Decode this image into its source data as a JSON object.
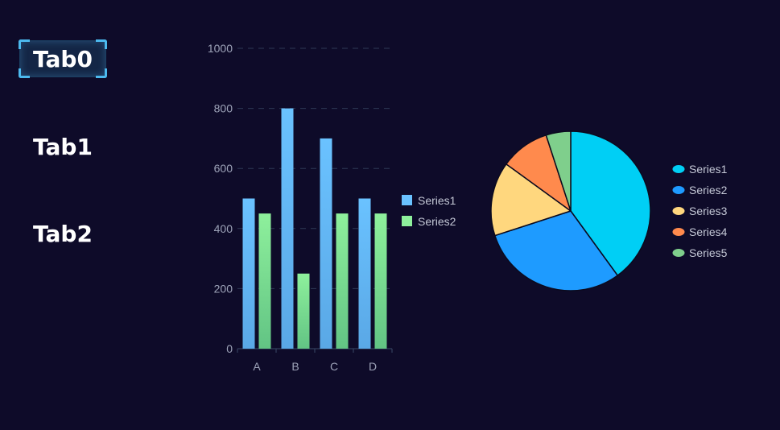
{
  "tabs": [
    {
      "label": "Tab0",
      "active": true
    },
    {
      "label": "Tab1",
      "active": false
    },
    {
      "label": "Tab2",
      "active": false
    }
  ],
  "colors": {
    "background": "#0e0b29",
    "axis_text": "#9da3b8",
    "legend_text": "#c4c8d6",
    "grid": "#2e3a55",
    "axis_line": "#3a4866"
  },
  "chart_data": [
    {
      "type": "bar",
      "categories": [
        "A",
        "B",
        "C",
        "D"
      ],
      "series": [
        {
          "name": "Series1",
          "values": [
            500,
            800,
            700,
            500
          ],
          "color_top": "#6ac2ff",
          "color_bottom": "#5aa8e6"
        },
        {
          "name": "Series2",
          "values": [
            450,
            250,
            450,
            450
          ],
          "color_top": "#8ef09c",
          "color_bottom": "#62c484"
        }
      ],
      "ylim": [
        0,
        1000
      ],
      "yticks": [
        0,
        200,
        400,
        600,
        800,
        1000
      ],
      "grid": true,
      "legend": "right"
    },
    {
      "type": "pie",
      "labels": [
        "Series1",
        "Series2",
        "Series3",
        "Series4",
        "Series5"
      ],
      "values": [
        40,
        30,
        15,
        10,
        5
      ],
      "colors": [
        "#00cff5",
        "#1e9bff",
        "#ffd77e",
        "#ff8a4d",
        "#7fcf8c"
      ],
      "legend": "right"
    }
  ]
}
